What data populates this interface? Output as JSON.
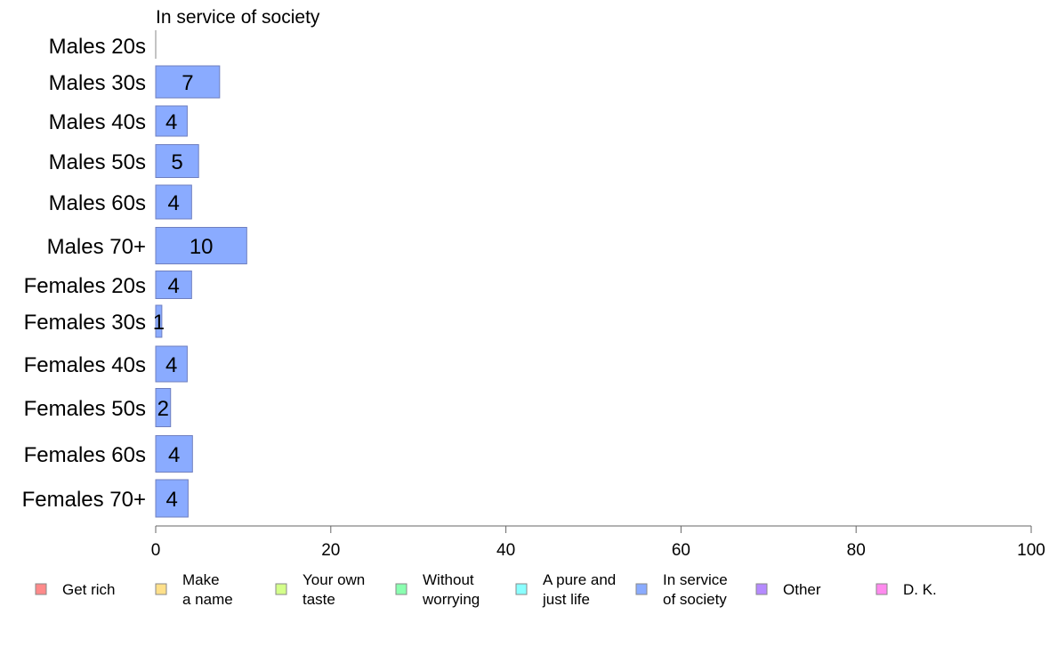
{
  "chart_data": {
    "type": "bar",
    "orientation": "horizontal",
    "title": "In service of society",
    "categories": [
      "Males 20s",
      "Males 30s",
      "Males 40s",
      "Males 50s",
      "Males 60s",
      "Males 70+",
      "Females 20s",
      "Females 30s",
      "Females 40s",
      "Females 50s",
      "Females 60s",
      "Females 70+"
    ],
    "values": [
      0,
      7.3,
      3.6,
      4.9,
      4.1,
      10.4,
      4.1,
      0.7,
      3.6,
      1.7,
      4.2,
      3.7
    ],
    "labels": [
      "",
      "7",
      "4",
      "5",
      "4",
      "10",
      "4",
      "1",
      "4",
      "2",
      "4",
      "4"
    ],
    "xlim": [
      0,
      100
    ],
    "xticks": [
      "0",
      "20",
      "40",
      "60",
      "80",
      "100"
    ],
    "bar_color": "#8aabff",
    "bar_edge_color": "#6f7fbf",
    "legend_placement": "bottom",
    "legend": [
      {
        "lines": [
          "Get rich"
        ],
        "color": "#ff8a8a"
      },
      {
        "lines": [
          "Make",
          "a name"
        ],
        "color": "#ffe08a"
      },
      {
        "lines": [
          "Your own",
          "taste"
        ],
        "color": "#d4ff8a"
      },
      {
        "lines": [
          "Without",
          "worrying"
        ],
        "color": "#8affb0"
      },
      {
        "lines": [
          "A pure and",
          "just life"
        ],
        "color": "#8affff"
      },
      {
        "lines": [
          "In service",
          "of society"
        ],
        "color": "#8aabff"
      },
      {
        "lines": [
          "Other"
        ],
        "color": "#b58aff"
      },
      {
        "lines": [
          "D. K."
        ],
        "color": "#ff8aee"
      }
    ]
  }
}
